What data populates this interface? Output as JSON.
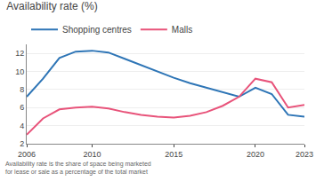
{
  "chart_data": {
    "type": "line",
    "title": "Availability rate (%)",
    "annotations": [
      "Availability rate is the share of space being marketed for lease or sale as a percentage of the total market"
    ],
    "x": [
      2006,
      2007,
      2008,
      2009,
      2010,
      2011,
      2012,
      2013,
      2014,
      2015,
      2016,
      2017,
      2018,
      2019,
      2020,
      2021,
      2022,
      2023
    ],
    "series": [
      {
        "name": "Shopping centres",
        "color": "#2e75b6",
        "values": [
          7.2,
          9.2,
          11.5,
          12.2,
          12.3,
          12.1,
          11.4,
          10.7,
          10.0,
          9.3,
          8.7,
          8.2,
          7.7,
          7.2,
          8.2,
          7.5,
          5.2,
          5.0
        ]
      },
      {
        "name": "Malls",
        "color": "#e8537a",
        "values": [
          3.0,
          4.8,
          5.8,
          6.0,
          6.1,
          5.9,
          5.5,
          5.2,
          5.0,
          4.9,
          5.1,
          5.5,
          6.2,
          7.2,
          9.2,
          8.8,
          6.0,
          6.3
        ]
      }
    ],
    "xlim": [
      2006,
      2023
    ],
    "xticks": [
      2006,
      2010,
      2015,
      2020,
      2023
    ],
    "ylim": [
      2,
      13
    ],
    "yticks": [
      2,
      4,
      6,
      8,
      10,
      12
    ],
    "grid": true,
    "legend": "top left"
  }
}
